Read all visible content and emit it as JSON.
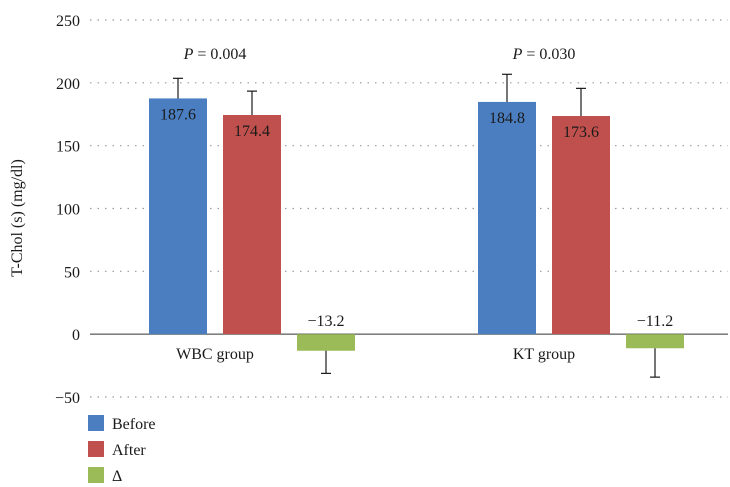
{
  "chart_data": {
    "type": "bar",
    "ylabel": "T-Chol (s) (mg/dl)",
    "ylim": [
      -50,
      250
    ],
    "yticks": [
      -50,
      0,
      50,
      100,
      150,
      200,
      250
    ],
    "grid": true,
    "legend_position": "bottom-left",
    "categories": [
      "WBC group",
      "KT group"
    ],
    "series": [
      {
        "name": "Before",
        "color": "#4a7ec0",
        "values": [
          187.6,
          184.8
        ],
        "labels": [
          "187.6",
          "184.8"
        ],
        "err_plus": [
          16,
          22
        ]
      },
      {
        "name": "After",
        "color": "#c0504d",
        "values": [
          174.4,
          173.6
        ],
        "labels": [
          "174.4",
          "173.6"
        ],
        "err_plus": [
          19,
          22
        ]
      },
      {
        "name": "Δ",
        "color": "#9bbb59",
        "values": [
          -13.2,
          -11.2
        ],
        "labels": [
          "−13.2",
          "−11.2"
        ],
        "err_minus": [
          18,
          23
        ]
      }
    ],
    "annotations": [
      {
        "category": "WBC group",
        "p_label": "P",
        "p_text": " = 0.004"
      },
      {
        "category": "KT group",
        "p_label": "P",
        "p_text": " = 0.030"
      }
    ]
  }
}
